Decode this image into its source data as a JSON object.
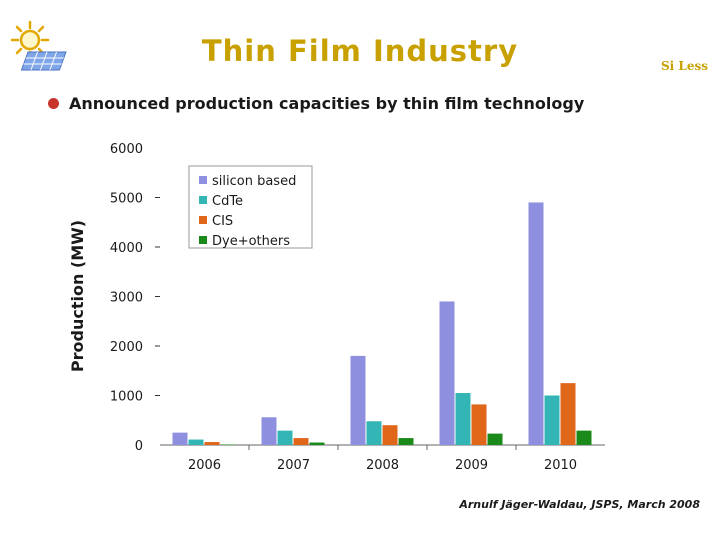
{
  "slide": {
    "title": "Thin Film Industry",
    "brand": "Si Less",
    "bullet": "Announced production capacities by thin film technology",
    "citation": "Arnulf Jäger-Waldau, JSPS, March 2008",
    "logo_icon": "sun-solar-panel-icon"
  },
  "chart_data": {
    "type": "bar",
    "title": "",
    "xlabel": "",
    "ylabel": "Production (MW)",
    "ylim": [
      0,
      6000
    ],
    "yticks": [
      0,
      1000,
      2000,
      3000,
      4000,
      5000,
      6000
    ],
    "categories": [
      "2006",
      "2007",
      "2008",
      "2009",
      "2010"
    ],
    "series": [
      {
        "name": "silicon based",
        "color": "#8f8fe0",
        "values": [
          250,
          560,
          1800,
          2900,
          4900
        ]
      },
      {
        "name": "CdTe",
        "color": "#33b5b5",
        "values": [
          110,
          290,
          480,
          1050,
          1000
        ]
      },
      {
        "name": "CIS",
        "color": "#e0661a",
        "values": [
          60,
          140,
          400,
          820,
          1250
        ]
      },
      {
        "name": "Dye+others",
        "color": "#1a8a1a",
        "values": [
          10,
          50,
          140,
          230,
          290
        ]
      }
    ],
    "legend_position": "top-left",
    "grid": false
  }
}
